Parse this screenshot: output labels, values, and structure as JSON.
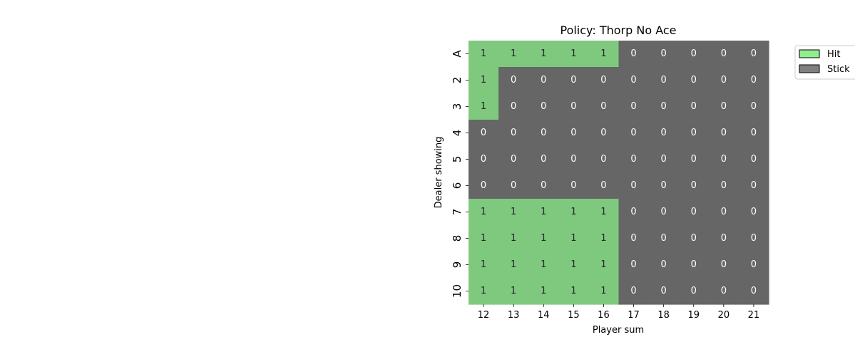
{
  "chart_data": {
    "type": "heatmap",
    "title": "Policy: Thorp No Ace",
    "xlabel": "Player sum",
    "ylabel": "Dealer showing",
    "x_categories": [
      "12",
      "13",
      "14",
      "15",
      "16",
      "17",
      "18",
      "19",
      "20",
      "21"
    ],
    "y_categories": [
      "A",
      "2",
      "3",
      "4",
      "5",
      "6",
      "7",
      "8",
      "9",
      "10"
    ],
    "values": [
      [
        1,
        1,
        1,
        1,
        1,
        0,
        0,
        0,
        0,
        0
      ],
      [
        1,
        0,
        0,
        0,
        0,
        0,
        0,
        0,
        0,
        0
      ],
      [
        1,
        0,
        0,
        0,
        0,
        0,
        0,
        0,
        0,
        0
      ],
      [
        0,
        0,
        0,
        0,
        0,
        0,
        0,
        0,
        0,
        0
      ],
      [
        0,
        0,
        0,
        0,
        0,
        0,
        0,
        0,
        0,
        0
      ],
      [
        0,
        0,
        0,
        0,
        0,
        0,
        0,
        0,
        0,
        0
      ],
      [
        1,
        1,
        1,
        1,
        1,
        0,
        0,
        0,
        0,
        0
      ],
      [
        1,
        1,
        1,
        1,
        1,
        0,
        0,
        0,
        0,
        0
      ],
      [
        1,
        1,
        1,
        1,
        1,
        0,
        0,
        0,
        0,
        0
      ],
      [
        1,
        1,
        1,
        1,
        1,
        0,
        0,
        0,
        0,
        0
      ]
    ],
    "colors": {
      "1": "#7fc97f",
      "0": "#666666"
    },
    "text_colors": {
      "1": "#262626",
      "0": "#ffffff"
    },
    "legend": {
      "placement": "outside-top-right",
      "entries": [
        {
          "label": "Hit",
          "color": "#90ee90"
        },
        {
          "label": "Stick",
          "color": "#808080"
        }
      ]
    }
  }
}
